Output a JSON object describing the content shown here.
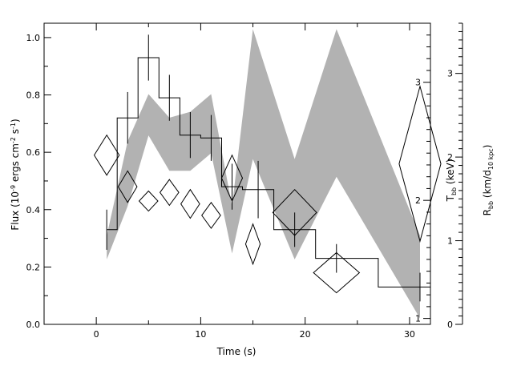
{
  "chart_data": {
    "type": "line",
    "xlabel": "Time (s)",
    "ylabel": {
      "main": "Flux (10",
      "sup1": "-9",
      "mid": " ergs cm",
      "sup2": "-2",
      "mid2": " s",
      "sup3": "-1",
      "end": ")"
    },
    "ylabel_right_inner": {
      "main": "T",
      "sub": "bb",
      "end": " (keV)"
    },
    "ylabel_right_outer": {
      "main": "R",
      "sub": "bb",
      "mid": " (km/d",
      "sub2": "10 kpc",
      "end": ")"
    },
    "xlim": [
      -5,
      32
    ],
    "ylim": [
      0,
      1.05
    ],
    "temp_axis_range": [
      0.95,
      3.5
    ],
    "radius_axis_range": [
      0,
      3.6
    ],
    "x_ticks": [
      0,
      10,
      20,
      30
    ],
    "y_ticks": [
      0.0,
      0.2,
      0.4,
      0.6,
      0.8,
      1.0
    ],
    "y_tick_labels": [
      "0.0",
      "0.2",
      "0.4",
      "0.6",
      "0.8",
      "1.0"
    ],
    "temp_ticks": [
      1,
      2,
      3
    ],
    "radius_ticks": [
      0,
      1,
      2,
      3
    ],
    "flux_histogram": {
      "name": "Flux",
      "edges": [
        1,
        2,
        4,
        6,
        8,
        10,
        12,
        14,
        17,
        21,
        27,
        32
      ],
      "values": [
        0.33,
        0.72,
        0.93,
        0.79,
        0.66,
        0.65,
        0.48,
        0.47,
        0.33,
        0.23,
        0.13
      ],
      "errorbars": [
        {
          "x": 1,
          "y": 0.33,
          "lo": 0.26,
          "hi": 0.4
        },
        {
          "x": 3,
          "y": 0.72,
          "lo": 0.63,
          "hi": 0.81
        },
        {
          "x": 5,
          "y": 0.93,
          "lo": 0.85,
          "hi": 1.01
        },
        {
          "x": 7,
          "y": 0.79,
          "lo": 0.71,
          "hi": 0.87
        },
        {
          "x": 9,
          "y": 0.66,
          "lo": 0.58,
          "hi": 0.74
        },
        {
          "x": 11,
          "y": 0.65,
          "lo": 0.57,
          "hi": 0.73
        },
        {
          "x": 13,
          "y": 0.48,
          "lo": 0.4,
          "hi": 0.56
        },
        {
          "x": 15.5,
          "y": 0.47,
          "lo": 0.37,
          "hi": 0.57
        },
        {
          "x": 19,
          "y": 0.33,
          "lo": 0.27,
          "hi": 0.39
        },
        {
          "x": 23,
          "y": 0.23,
          "lo": 0.18,
          "hi": 0.28
        },
        {
          "x": 31,
          "y": 0.13,
          "lo": 0.08,
          "hi": 0.18
        }
      ]
    },
    "temperature_band": {
      "name": "Temperature",
      "x": [
        1,
        3,
        5,
        7,
        9,
        11,
        13,
        15,
        19,
        23,
        31
      ],
      "upper": [
        1.7,
        2.5,
        2.9,
        2.7,
        2.75,
        2.9,
        1.95,
        3.45,
        2.35,
        3.45,
        1.7
      ],
      "lower": [
        1.5,
        1.95,
        2.55,
        2.25,
        2.25,
        2.4,
        1.55,
        2.35,
        1.5,
        2.2,
        1.0
      ]
    },
    "radius_diamonds": {
      "name": "Radius",
      "points": [
        {
          "x": 1,
          "y": 0.59,
          "hw": 1.2,
          "hh": 0.07
        },
        {
          "x": 3,
          "y": 0.48,
          "hw": 0.9,
          "hh": 0.055
        },
        {
          "x": 5,
          "y": 0.43,
          "hw": 0.9,
          "hh": 0.035
        },
        {
          "x": 7,
          "y": 0.46,
          "hw": 0.9,
          "hh": 0.045
        },
        {
          "x": 9,
          "y": 0.42,
          "hw": 0.9,
          "hh": 0.05
        },
        {
          "x": 11,
          "y": 0.38,
          "hw": 0.9,
          "hh": 0.045
        },
        {
          "x": 13,
          "y": 0.51,
          "hw": 1.0,
          "hh": 0.08
        },
        {
          "x": 15,
          "y": 0.28,
          "hw": 0.7,
          "hh": 0.07
        },
        {
          "x": 19,
          "y": 0.39,
          "hw": 2.1,
          "hh": 0.08
        },
        {
          "x": 23,
          "y": 0.18,
          "hw": 2.2,
          "hh": 0.07
        },
        {
          "x": 31,
          "y": 0.56,
          "hw": 2.0,
          "hh": 0.27
        }
      ]
    }
  }
}
